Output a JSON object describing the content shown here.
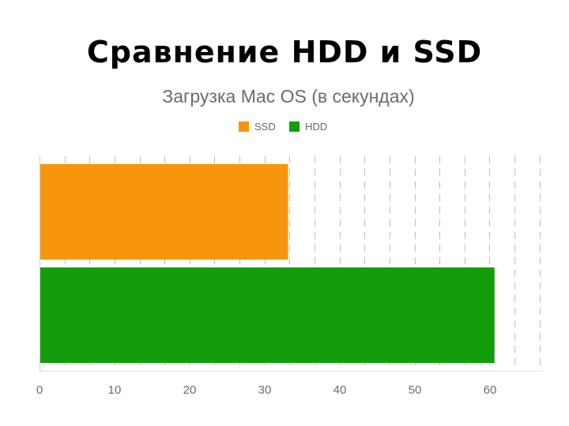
{
  "slide": {
    "title": "Сравнение HDD и SSD"
  },
  "chart_data": {
    "type": "bar",
    "orientation": "horizontal",
    "title": "Загрузка Mac OS (в секундах)",
    "xlabel": "",
    "ylabel": "",
    "series": [
      {
        "name": "SSD",
        "values": [
          33
        ],
        "color": "#f7960c"
      },
      {
        "name": "HDD",
        "values": [
          60.5
        ],
        "color": "#139d0b"
      }
    ],
    "xlim": [
      0,
      67
    ],
    "x_ticks": [
      0,
      10,
      20,
      30,
      40,
      50,
      60
    ],
    "x_tick_labels": [
      "0",
      "10",
      "20",
      "30",
      "40",
      "50",
      "60"
    ],
    "grid": "vertical dashed",
    "legend_position": "top"
  }
}
